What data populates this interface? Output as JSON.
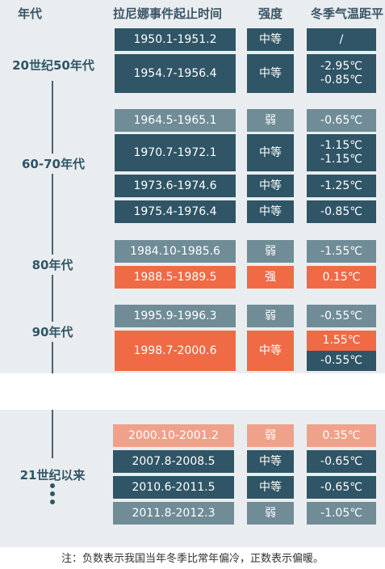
{
  "headers": {
    "decade": "年代",
    "period": "拉尼娜事件起止时间",
    "intensity": "强度",
    "winter_temp": "冬季气温距平"
  },
  "decades": {
    "d50": "20世纪50年代",
    "d6070": "60-70年代",
    "d80": "80年代",
    "d90": "90年代",
    "d21": "21世纪以来"
  },
  "rows": {
    "r1": {
      "period": "1950.1-1951.2",
      "intensity": "中等",
      "temp": "/"
    },
    "r2": {
      "period": "1954.7-1956.4",
      "intensity": "中等",
      "temp_a": "-2.95℃",
      "temp_b": "-0.85℃"
    },
    "r3": {
      "period": "1964.5-1965.1",
      "intensity": "弱",
      "temp": "-0.65℃"
    },
    "r4": {
      "period": "1970.7-1972.1",
      "intensity": "中等",
      "temp_a": "-1.15℃",
      "temp_b": "-1.15℃"
    },
    "r5": {
      "period": "1973.6-1974.6",
      "intensity": "中等",
      "temp": "-1.25℃"
    },
    "r6": {
      "period": "1975.4-1976.4",
      "intensity": "中等",
      "temp": "-0.85℃"
    },
    "r7": {
      "period": "1984.10-1985.6",
      "intensity": "弱",
      "temp": "-1.55℃"
    },
    "r8": {
      "period": "1988.5-1989.5",
      "intensity": "强",
      "temp": "0.15℃"
    },
    "r9": {
      "period": "1995.9-1996.3",
      "intensity": "弱",
      "temp": "-0.55℃"
    },
    "r10": {
      "period": "1998.7-2000.6",
      "intensity": "中等",
      "temp_a": "1.55℃",
      "temp_b": "-0.55℃"
    },
    "r11": {
      "period": "2000.10-2001.2",
      "intensity": "弱",
      "temp": "0.35℃"
    },
    "r12": {
      "period": "2007.8-2008.5",
      "intensity": "中等",
      "temp": "-0.65℃"
    },
    "r13": {
      "period": "2010.6-2011.5",
      "intensity": "中等",
      "temp": "-0.65℃"
    },
    "r14": {
      "period": "2011.8-2012.3",
      "intensity": "弱",
      "temp": "-1.05℃"
    }
  },
  "footnote": "注：负数表示我国当年冬季比常年偏冷，正数表示偏暖。",
  "colors": {
    "dark": "#2f5566",
    "gray": "#6f8c97",
    "orange": "#f06a45",
    "light_orange": "#f0a18a"
  }
}
